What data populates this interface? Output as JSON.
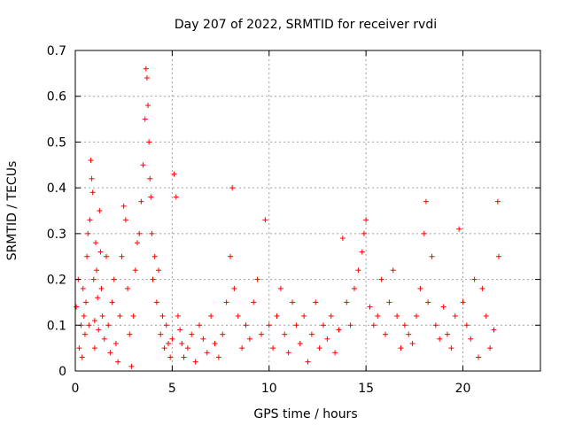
{
  "chart_data": {
    "type": "scatter",
    "title": "Day 207 of 2022, SRMTID for receiver rvdi",
    "xlabel": "GPS time / hours",
    "ylabel": "SRMTID / TECUs",
    "xlim": [
      0,
      24
    ],
    "ylim": [
      0,
      0.7
    ],
    "xticks": [
      0,
      5,
      10,
      15,
      20
    ],
    "xtick_labels": [
      "0",
      "5",
      "10",
      "15",
      "20"
    ],
    "yticks": [
      0,
      0.1,
      0.2,
      0.3,
      0.4,
      0.5,
      0.6,
      0.7
    ],
    "ytick_labels": [
      "0",
      "0.1",
      "0.2",
      "0.3",
      "0.4",
      "0.5",
      "0.6",
      "0.7"
    ],
    "grid": true,
    "marker": "+",
    "series": [
      {
        "name": "SRMTID",
        "color": "#ff0000",
        "x": [
          0.05,
          0.15,
          0.2,
          0.3,
          0.35,
          0.4,
          0.45,
          0.5,
          0.55,
          0.6,
          0.65,
          0.7,
          0.75,
          0.8,
          0.85,
          0.9,
          0.95,
          1.0,
          1.0,
          1.05,
          1.1,
          1.15,
          1.2,
          1.25,
          1.3,
          1.35,
          1.4,
          1.5,
          1.6,
          1.7,
          1.8,
          1.9,
          2.0,
          2.1,
          2.2,
          2.3,
          2.4,
          2.5,
          2.6,
          2.7,
          2.8,
          2.9,
          3.0,
          3.1,
          3.2,
          3.3,
          3.4,
          3.5,
          3.6,
          3.65,
          3.7,
          3.75,
          3.8,
          3.85,
          3.9,
          3.95,
          4.0,
          4.1,
          4.2,
          4.3,
          4.4,
          4.5,
          4.6,
          4.7,
          4.8,
          4.9,
          5.0,
          5.1,
          5.2,
          5.3,
          5.4,
          5.5,
          5.6,
          5.8,
          6.0,
          6.2,
          6.4,
          6.6,
          6.8,
          7.0,
          7.2,
          7.4,
          7.6,
          7.8,
          8.0,
          8.1,
          8.2,
          8.4,
          8.6,
          8.8,
          9.0,
          9.2,
          9.4,
          9.6,
          9.8,
          10.0,
          10.2,
          10.4,
          10.6,
          10.8,
          11.0,
          11.2,
          11.4,
          11.6,
          11.8,
          12.0,
          12.2,
          12.4,
          12.6,
          12.8,
          13.0,
          13.2,
          13.4,
          13.6,
          13.8,
          14.0,
          14.2,
          14.4,
          14.6,
          14.8,
          14.9,
          15.0,
          15.2,
          15.4,
          15.6,
          15.8,
          16.0,
          16.2,
          16.4,
          16.6,
          16.8,
          17.0,
          17.2,
          17.4,
          17.6,
          17.8,
          18.0,
          18.1,
          18.2,
          18.4,
          18.6,
          18.8,
          19.0,
          19.2,
          19.4,
          19.6,
          19.8,
          20.0,
          20.2,
          20.4,
          20.6,
          20.8,
          21.0,
          21.2,
          21.4,
          21.6,
          21.8,
          21.85
        ],
        "y": [
          0.14,
          0.2,
          0.05,
          0.1,
          0.03,
          0.18,
          0.12,
          0.08,
          0.15,
          0.25,
          0.3,
          0.1,
          0.33,
          0.46,
          0.42,
          0.39,
          0.2,
          0.11,
          0.05,
          0.28,
          0.22,
          0.16,
          0.09,
          0.35,
          0.26,
          0.18,
          0.12,
          0.07,
          0.25,
          0.1,
          0.04,
          0.15,
          0.2,
          0.06,
          0.02,
          0.12,
          0.25,
          0.36,
          0.33,
          0.18,
          0.08,
          0.01,
          0.12,
          0.22,
          0.28,
          0.3,
          0.37,
          0.45,
          0.55,
          0.66,
          0.64,
          0.58,
          0.5,
          0.42,
          0.38,
          0.3,
          0.2,
          0.25,
          0.15,
          0.22,
          0.08,
          0.12,
          0.05,
          0.1,
          0.06,
          0.03,
          0.07,
          0.43,
          0.38,
          0.12,
          0.09,
          0.06,
          0.03,
          0.05,
          0.08,
          0.02,
          0.1,
          0.07,
          0.04,
          0.12,
          0.06,
          0.03,
          0.08,
          0.15,
          0.25,
          0.4,
          0.18,
          0.12,
          0.05,
          0.1,
          0.07,
          0.15,
          0.2,
          0.08,
          0.33,
          0.1,
          0.05,
          0.12,
          0.18,
          0.08,
          0.04,
          0.15,
          0.1,
          0.06,
          0.12,
          0.02,
          0.08,
          0.15,
          0.05,
          0.1,
          0.07,
          0.12,
          0.04,
          0.09,
          0.29,
          0.15,
          0.1,
          0.18,
          0.22,
          0.26,
          0.3,
          0.33,
          0.14,
          0.1,
          0.12,
          0.2,
          0.08,
          0.15,
          0.22,
          0.12,
          0.05,
          0.1,
          0.08,
          0.06,
          0.12,
          0.18,
          0.3,
          0.37,
          0.15,
          0.25,
          0.1,
          0.07,
          0.14,
          0.08,
          0.05,
          0.12,
          0.31,
          0.15,
          0.1,
          0.07,
          0.2,
          0.03,
          0.18,
          0.12,
          0.05,
          0.09,
          0.37,
          0.25
        ]
      }
    ]
  }
}
